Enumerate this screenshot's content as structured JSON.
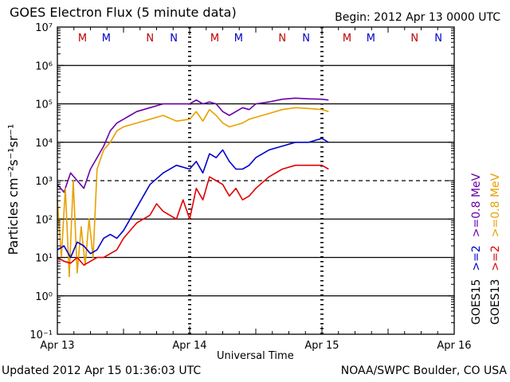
{
  "header": {
    "title": "GOES Electron Flux (5 minute data)",
    "begin": "Begin: 2012 Apr 13 0000 UTC"
  },
  "footer": {
    "updated": "Updated 2012 Apr 15 01:36:03 UTC",
    "source": "NOAA/SWPC Boulder, CO USA"
  },
  "chart_data": {
    "type": "line",
    "title": "GOES Electron Flux (5 minute data)",
    "xlabel": "Universal Time",
    "ylabel": "Particles cm⁻²s⁻¹sr⁻¹",
    "y_scale": "log",
    "ylim_exponent": [
      -1,
      7
    ],
    "y_tick_labels": [
      "10⁻¹",
      "10⁰",
      "10¹",
      "10²",
      "10³",
      "10⁴",
      "10⁵",
      "10⁶",
      "10⁷"
    ],
    "x_tick_labels": [
      "Apr 13",
      "Apr 14",
      "Apr 15",
      "Apr 16"
    ],
    "xlim_days": [
      0,
      3
    ],
    "threshold_line_exponent": 3,
    "right_labels": [
      {
        "text": "GOES15",
        "color": "#000000"
      },
      {
        "text": ">=2",
        "color": "#0000c8"
      },
      {
        "text": ">=0.8 MeV",
        "color": "#6a00a8"
      },
      {
        "text": "GOES13",
        "color": "#000000"
      },
      {
        "text": ">=2",
        "color": "#e00000"
      },
      {
        "text": ">=0.8 MeV",
        "color": "#e8a000"
      }
    ],
    "markers": [
      {
        "label": "M",
        "day": 0.19,
        "color": "#c00000"
      },
      {
        "label": "M",
        "day": 0.37,
        "color": "#0000c8"
      },
      {
        "label": "N",
        "day": 0.7,
        "color": "#c00000"
      },
      {
        "label": "N",
        "day": 0.88,
        "color": "#0000c8"
      },
      {
        "label": "M",
        "day": 1.19,
        "color": "#c00000"
      },
      {
        "label": "M",
        "day": 1.37,
        "color": "#0000c8"
      },
      {
        "label": "N",
        "day": 1.7,
        "color": "#c00000"
      },
      {
        "label": "N",
        "day": 1.88,
        "color": "#0000c8"
      },
      {
        "label": "M",
        "day": 2.19,
        "color": "#c00000"
      },
      {
        "label": "M",
        "day": 2.37,
        "color": "#0000c8"
      },
      {
        "label": "N",
        "day": 2.7,
        "color": "#c00000"
      },
      {
        "label": "N",
        "day": 2.88,
        "color": "#0000c8"
      }
    ],
    "series": [
      {
        "name": "GOES15 >=0.8 MeV",
        "color": "#6a00a8",
        "x": [
          0.0,
          0.05,
          0.1,
          0.15,
          0.2,
          0.25,
          0.3,
          0.35,
          0.4,
          0.45,
          0.5,
          0.55,
          0.6,
          0.7,
          0.8,
          0.9,
          1.0,
          1.05,
          1.1,
          1.15,
          1.2,
          1.25,
          1.3,
          1.4,
          1.45,
          1.5,
          1.6,
          1.7,
          1.8,
          1.9,
          2.0,
          2.05
        ],
        "y_exponent": [
          2.9,
          2.7,
          3.2,
          3.0,
          2.8,
          3.3,
          3.6,
          3.9,
          4.3,
          4.5,
          4.6,
          4.7,
          4.8,
          4.9,
          5.0,
          5.0,
          5.0,
          5.1,
          5.0,
          5.05,
          5.0,
          4.8,
          4.7,
          4.9,
          4.85,
          5.0,
          5.05,
          5.12,
          5.15,
          5.13,
          5.12,
          5.1
        ]
      },
      {
        "name": "GOES13 >=0.8 MeV",
        "color": "#e8a000",
        "x": [
          0.0,
          0.03,
          0.06,
          0.09,
          0.12,
          0.15,
          0.18,
          0.21,
          0.24,
          0.27,
          0.3,
          0.35,
          0.4,
          0.45,
          0.5,
          0.6,
          0.7,
          0.8,
          0.9,
          1.0,
          1.05,
          1.1,
          1.15,
          1.2,
          1.25,
          1.3,
          1.4,
          1.45,
          1.5,
          1.6,
          1.7,
          1.8,
          1.9,
          2.0,
          2.05
        ],
        "y_exponent": [
          2.5,
          1.0,
          2.8,
          0.5,
          3.0,
          0.6,
          1.8,
          0.8,
          2.0,
          1.0,
          3.3,
          3.8,
          4.0,
          4.3,
          4.4,
          4.5,
          4.6,
          4.7,
          4.55,
          4.6,
          4.8,
          4.55,
          4.85,
          4.7,
          4.5,
          4.4,
          4.5,
          4.6,
          4.65,
          4.75,
          4.85,
          4.9,
          4.88,
          4.85,
          4.8
        ]
      },
      {
        "name": "GOES15 >=2 MeV",
        "color": "#0000c8",
        "x": [
          0.0,
          0.05,
          0.1,
          0.15,
          0.2,
          0.25,
          0.3,
          0.35,
          0.4,
          0.45,
          0.5,
          0.6,
          0.7,
          0.8,
          0.9,
          1.0,
          1.05,
          1.1,
          1.15,
          1.2,
          1.25,
          1.3,
          1.35,
          1.4,
          1.45,
          1.5,
          1.6,
          1.7,
          1.8,
          1.9,
          2.0,
          2.05
        ],
        "y_exponent": [
          1.2,
          1.3,
          1.0,
          1.4,
          1.3,
          1.1,
          1.2,
          1.5,
          1.6,
          1.5,
          1.7,
          2.3,
          2.9,
          3.2,
          3.4,
          3.3,
          3.5,
          3.2,
          3.7,
          3.6,
          3.8,
          3.5,
          3.3,
          3.3,
          3.4,
          3.6,
          3.8,
          3.9,
          4.0,
          4.0,
          4.1,
          4.0
        ]
      },
      {
        "name": "GOES13 >=2 MeV",
        "color": "#e00000",
        "x": [
          0.0,
          0.05,
          0.1,
          0.15,
          0.2,
          0.25,
          0.3,
          0.35,
          0.4,
          0.45,
          0.5,
          0.6,
          0.7,
          0.75,
          0.8,
          0.85,
          0.9,
          0.95,
          1.0,
          1.05,
          1.1,
          1.15,
          1.2,
          1.25,
          1.3,
          1.35,
          1.4,
          1.45,
          1.5,
          1.6,
          1.7,
          1.8,
          1.9,
          2.0,
          2.05
        ],
        "y_exponent": [
          1.0,
          0.9,
          0.85,
          1.0,
          0.8,
          0.9,
          1.0,
          1.0,
          1.1,
          1.2,
          1.5,
          1.9,
          2.1,
          2.4,
          2.2,
          2.1,
          2.0,
          2.5,
          2.0,
          2.8,
          2.5,
          3.1,
          3.0,
          2.9,
          2.6,
          2.8,
          2.5,
          2.6,
          2.8,
          3.1,
          3.3,
          3.4,
          3.4,
          3.4,
          3.3
        ]
      }
    ]
  }
}
